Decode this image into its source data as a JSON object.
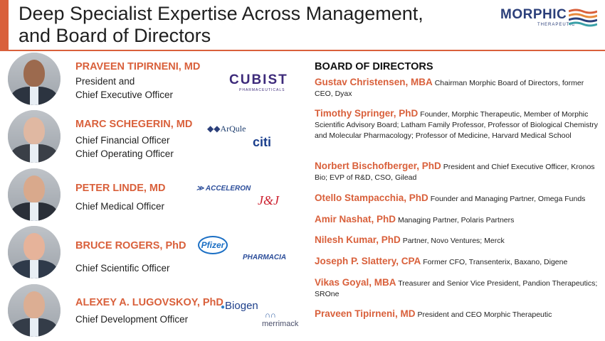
{
  "header": {
    "title_line1": "Deep Specialist Expertise Across Management,",
    "title_line2": "and Board of Directors",
    "logo_word": "MORPHIC",
    "logo_sub": "THERAPEUTIC"
  },
  "colors": {
    "accent": "#d9603b",
    "navy": "#2b3f7a"
  },
  "management": [
    {
      "name": "PRAVEEN TIPIRNENI, MD",
      "role1": "President and",
      "role2": "Chief Executive Officer"
    },
    {
      "name": "MARC SCHEGERIN, MD",
      "role1": "Chief Financial Officer",
      "role2": "Chief Operating Officer"
    },
    {
      "name": "PETER LINDE, MD",
      "role1": "Chief Medical Officer",
      "role2": ""
    },
    {
      "name": "BRUCE ROGERS, PhD",
      "role1": "Chief Scientific Officer",
      "role2": ""
    },
    {
      "name": "ALEXEY A. LUGOVSKOY, PhD",
      "role1": "Chief Development Officer",
      "role2": ""
    }
  ],
  "company_logos": {
    "cubist": "CUBIST",
    "cubist_sub": "PHARMACEUTICALS",
    "arqule": "ArQule",
    "citi": "citi",
    "acceleron": "ACCELERON",
    "jnj": "J&J",
    "pfizer": "Pfizer",
    "pharmacia": "PHARMACIA",
    "biogen": "Biogen",
    "merrimack": "merrimack"
  },
  "board": {
    "heading": "BOARD OF DIRECTORS",
    "members": [
      {
        "name": "Gustav Christensen, MBA",
        "desc": " Chairman Morphic Board of Directors, former CEO, Dyax"
      },
      {
        "name": "Timothy Springer, PhD",
        "desc": " Founder, Morphic Therapeutic, Member of Morphic Scientific Advisory Board; Latham Family Professor, Professor of Biological Chemistry and Molecular Pharmacology; Professor of Medicine, Harvard Medical School"
      },
      {
        "name": "Norbert Bischofberger, PhD",
        "desc": " President and Chief Executive Officer, Kronos Bio; EVP of R&D, CSO, Gilead"
      },
      {
        "name": "Otello Stampacchia, PhD",
        "desc": "  Founder and Managing Partner, Omega Funds"
      },
      {
        "name": "Amir Nashat, PhD",
        "desc": " Managing Partner, Polaris Partners"
      },
      {
        "name": "Nilesh Kumar, PhD",
        "desc": " Partner, Novo Ventures; Merck"
      },
      {
        "name": "Joseph P. Slattery, CPA",
        "desc": " Former CFO, Transenterix, Baxano, Digene"
      },
      {
        "name": "Vikas Goyal, MBA",
        "desc": " Treasurer and Senior Vice President, Pandion Therapeutics; SROne"
      },
      {
        "name": "Praveen Tipirneni, MD",
        "desc": " President and CEO Morphic Therapeutic"
      }
    ]
  }
}
